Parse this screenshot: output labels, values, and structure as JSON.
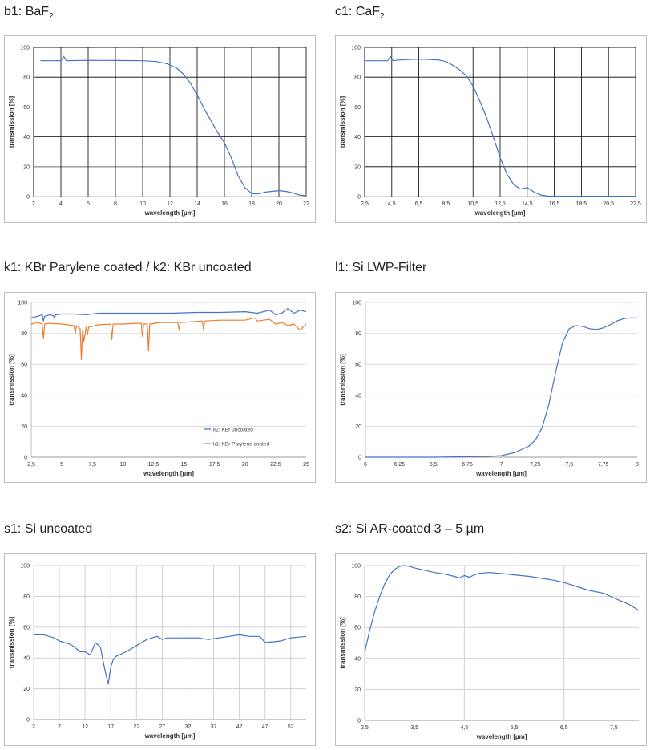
{
  "titles": {
    "b1_main": "b1: BaF",
    "b1_sub": "2",
    "c1_main": "c1: CaF",
    "c1_sub": "2",
    "k1": "k1: KBr Parylene coated / k2: KBr uncoated",
    "l1": "l1: Si LWP-Filter",
    "s1": "s1: Si uncoated",
    "s2": "s2: Si AR-coated 3 – 5 µm"
  },
  "colors": {
    "blue": "#4472c4",
    "orange": "#ed7d31"
  },
  "chart_data": [
    {
      "id": "b1",
      "type": "line",
      "xlabel": "wavelength [µm]",
      "ylabel": "transmission [%]",
      "xlim": [
        2,
        22
      ],
      "ylim": [
        0,
        100
      ],
      "xticks": [
        "2",
        "4",
        "6",
        "8",
        "10",
        "12",
        "14",
        "16",
        "18",
        "20",
        "22"
      ],
      "yticks": [
        "0",
        "20",
        "40",
        "60",
        "80",
        "100"
      ],
      "series": [
        {
          "name": "BaF2",
          "color": "#4472c4",
          "x": [
            2.5,
            4.0,
            4.2,
            4.4,
            6,
            8,
            10,
            11,
            11.8,
            12.5,
            13,
            13.5,
            14,
            14.5,
            15,
            15.5,
            16,
            16.5,
            17,
            17.5,
            18,
            18.5,
            19,
            19.5,
            20,
            20.5,
            21,
            21.5,
            22
          ],
          "y": [
            91,
            91,
            94,
            91,
            91.3,
            91.2,
            91,
            90.5,
            89,
            86,
            82,
            76,
            68,
            59,
            51,
            43,
            36,
            26,
            14,
            6,
            2,
            1.8,
            3,
            3.5,
            4,
            3.5,
            2.5,
            1,
            0.5
          ]
        }
      ]
    },
    {
      "id": "c1",
      "type": "line",
      "xlabel": "wavelength [µm]",
      "ylabel": "transmission [%]",
      "xlim": [
        2.5,
        22.5
      ],
      "ylim": [
        0,
        100
      ],
      "xticks": [
        "2,5",
        "4,5",
        "6,5",
        "8,5",
        "10,5",
        "12,5",
        "14,5",
        "16,5",
        "18,5",
        "20,5",
        "22,5"
      ],
      "yticks": [
        "0",
        "20",
        "40",
        "60",
        "80",
        "100"
      ],
      "series": [
        {
          "name": "CaF2",
          "color": "#4472c4",
          "x": [
            2.5,
            4.2,
            4.4,
            4.6,
            5,
            6,
            7,
            8,
            8.5,
            9,
            9.5,
            10,
            10.5,
            11,
            11.5,
            12,
            12.5,
            13,
            13.5,
            14,
            14.5,
            15,
            15.5,
            16,
            17,
            18,
            20,
            22.5
          ],
          "y": [
            91,
            91,
            94,
            91,
            91.5,
            92,
            92,
            91.5,
            90.5,
            88,
            85,
            81,
            74,
            64,
            53,
            40,
            26,
            15,
            8,
            5,
            6,
            3,
            1,
            0.3,
            0.2,
            0.2,
            0.2,
            0.2
          ]
        }
      ]
    },
    {
      "id": "k1",
      "type": "line",
      "xlabel": "wavelength [µm]",
      "ylabel": "transmission [%]",
      "xlim": [
        2.5,
        25
      ],
      "ylim": [
        0,
        100
      ],
      "xticks": [
        "2,5",
        "5",
        "7,5",
        "10",
        "12,5",
        "15",
        "17,5",
        "20",
        "22,5",
        "25"
      ],
      "yticks": [
        "0",
        "20",
        "40",
        "60",
        "80",
        "100"
      ],
      "legend": [
        "k2: KBr uncoated",
        "k1: KBr Parylene coated"
      ],
      "series": [
        {
          "name": "k2: KBr uncoated",
          "color": "#4472c4",
          "x": [
            2.5,
            3.0,
            3.4,
            3.5,
            3.6,
            4,
            4.3,
            4.4,
            4.5,
            5,
            6,
            7,
            8,
            10,
            12,
            14,
            16,
            18,
            20,
            21,
            22,
            22.5,
            23,
            23.5,
            24,
            24.5,
            25
          ],
          "y": [
            90,
            91,
            92,
            88,
            91,
            92,
            91.5,
            90,
            92,
            92.5,
            92.5,
            92,
            93,
            93,
            93,
            93,
            93.5,
            93.5,
            94,
            93,
            95,
            92,
            93,
            96,
            93,
            95,
            94
          ]
        },
        {
          "name": "k1: KBr Parylene coated",
          "color": "#ed7d31",
          "x": [
            2.5,
            3.0,
            3.4,
            3.5,
            3.6,
            4,
            5,
            6.0,
            6.1,
            6.2,
            6.5,
            6.6,
            6.7,
            6.8,
            7.0,
            7.1,
            7.2,
            8,
            9.0,
            9.1,
            9.2,
            10,
            11,
            11.5,
            11.6,
            11.7,
            12.0,
            12.1,
            12.2,
            13,
            14.5,
            14.6,
            14.7,
            16.5,
            16.6,
            16.7,
            18,
            20,
            20.8,
            21,
            22,
            22.5,
            23,
            23.5,
            24,
            24.5,
            25
          ],
          "y": [
            86,
            87,
            86,
            77,
            86,
            86.5,
            86,
            85,
            80,
            85,
            83,
            63,
            82,
            75,
            84,
            79,
            84,
            85.5,
            86,
            76,
            86,
            86,
            86.5,
            86.5,
            78,
            86,
            86,
            69,
            86,
            87,
            87,
            82,
            87,
            88,
            82,
            88,
            88.5,
            88.5,
            90,
            88,
            89,
            86,
            87,
            85,
            86,
            82,
            86
          ]
        }
      ]
    },
    {
      "id": "l1",
      "type": "line",
      "xlabel": "wavelength [µm]",
      "ylabel": "transmission [%]",
      "xlim": [
        6,
        8
      ],
      "ylim": [
        0,
        100
      ],
      "xticks": [
        "6",
        "6,25",
        "6,5",
        "6,75",
        "7",
        "7,25",
        "7,5",
        "7,75",
        "8"
      ],
      "yticks": [
        "0",
        "20",
        "40",
        "60",
        "80",
        "100"
      ],
      "series": [
        {
          "name": "Si LWP-Filter",
          "color": "#4472c4",
          "x": [
            6,
            6.5,
            6.9,
            7.0,
            7.1,
            7.2,
            7.25,
            7.3,
            7.35,
            7.4,
            7.45,
            7.5,
            7.55,
            7.6,
            7.65,
            7.7,
            7.75,
            7.8,
            7.85,
            7.9,
            7.95,
            8.0
          ],
          "y": [
            0,
            0,
            0.5,
            1,
            3,
            7,
            11,
            19,
            34,
            55,
            74,
            83,
            85,
            84.5,
            83,
            82.5,
            83.5,
            85.5,
            88,
            89.5,
            90,
            90
          ]
        }
      ]
    },
    {
      "id": "s1",
      "type": "line",
      "xlabel": "wavelength [µm]",
      "ylabel": "transmission [%]",
      "xlim": [
        2,
        55
      ],
      "ylim": [
        0,
        100
      ],
      "xticks": [
        "2",
        "7",
        "12",
        "17",
        "22",
        "27",
        "32",
        "37",
        "42",
        "47",
        "52"
      ],
      "yticks": [
        "0",
        "20",
        "40",
        "60",
        "80",
        "100"
      ],
      "series": [
        {
          "name": "Si uncoated",
          "color": "#4472c4",
          "x": [
            2,
            4,
            5,
            6,
            7,
            8,
            9,
            10,
            11,
            12,
            13,
            14,
            15,
            15.5,
            16,
            16.5,
            17,
            17.5,
            18,
            20,
            22,
            24,
            26,
            27,
            28,
            30,
            32,
            34,
            36,
            38,
            40,
            42,
            44,
            46,
            47,
            50,
            52,
            55
          ],
          "y": [
            55,
            55,
            54,
            53,
            51,
            50,
            49,
            47,
            44,
            44,
            42,
            50,
            47,
            38,
            30,
            23,
            34,
            39,
            41,
            44,
            48,
            52,
            54,
            52,
            53,
            53,
            53,
            53,
            52,
            53,
            54,
            55,
            54,
            54,
            50,
            51,
            53,
            54
          ]
        }
      ]
    },
    {
      "id": "s2",
      "type": "line",
      "xlabel": "wavelength [µm]",
      "ylabel": "transmission [%]",
      "xlim": [
        2.5,
        8
      ],
      "ylim": [
        0,
        100
      ],
      "xticks": [
        "2,5",
        "3,5",
        "4,5",
        "5,5",
        "6,5",
        "7,5"
      ],
      "yticks": [
        "0",
        "20",
        "40",
        "60",
        "80",
        "100"
      ],
      "series": [
        {
          "name": "Si AR-coated 3-5 µm",
          "color": "#4472c4",
          "x": [
            2.5,
            2.6,
            2.7,
            2.8,
            2.9,
            3.0,
            3.1,
            3.2,
            3.3,
            3.4,
            3.5,
            3.7,
            3.9,
            4.1,
            4.3,
            4.4,
            4.5,
            4.6,
            4.7,
            4.8,
            5.0,
            5.2,
            5.5,
            5.8,
            6.0,
            6.3,
            6.5,
            6.8,
            7.0,
            7.3,
            7.5,
            7.8,
            8.0
          ],
          "y": [
            44,
            58,
            70,
            80,
            88,
            94,
            97.5,
            99.5,
            100,
            99.5,
            98.5,
            97,
            95.5,
            94.5,
            93,
            92,
            93.5,
            92.5,
            94,
            95,
            95.5,
            95,
            94,
            93,
            92,
            90.5,
            89,
            86,
            84,
            82,
            79,
            75,
            71
          ]
        }
      ]
    }
  ]
}
